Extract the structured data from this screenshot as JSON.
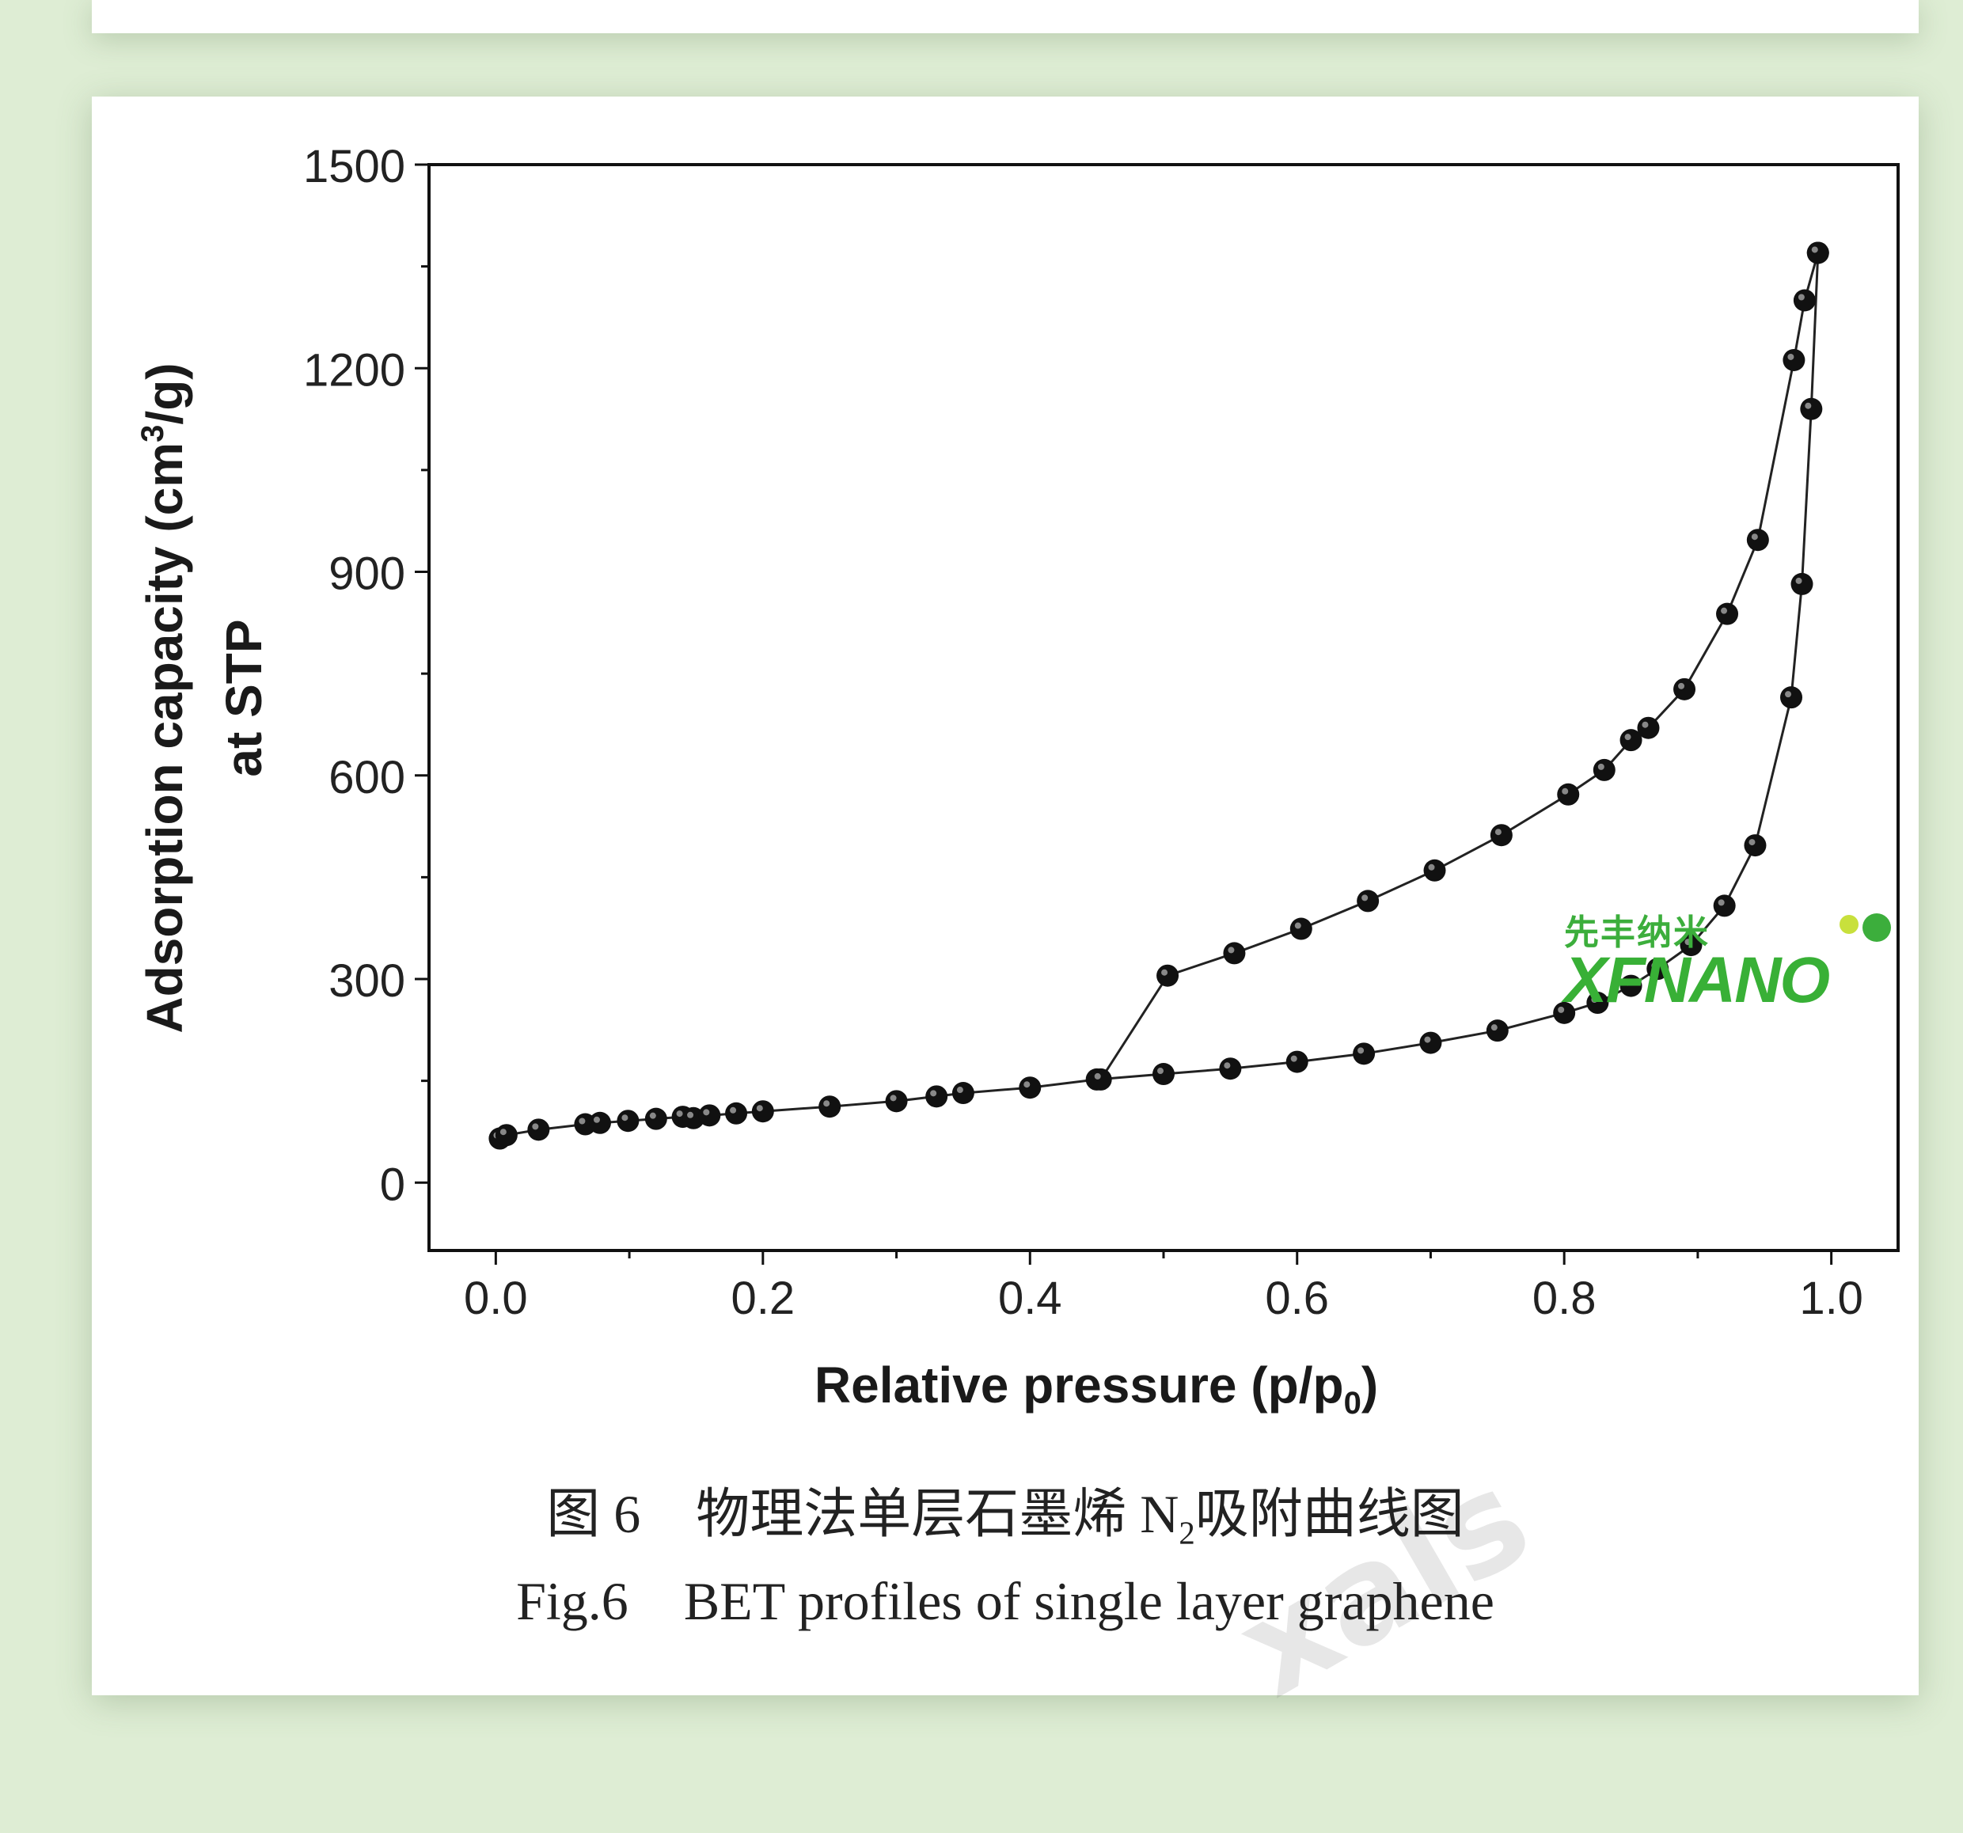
{
  "captions": {
    "cn_num": "图 6",
    "cn_text_pre": "物理法单层石墨烯 N",
    "cn_sub": "2",
    "cn_text_post": "吸附曲线图",
    "en_num": "Fig.6",
    "en_text": "BET profiles of single layer graphene"
  },
  "logo": {
    "cn": "先丰纳米",
    "en": "XFNANO",
    "color": "#38b036"
  },
  "watermark": "xals",
  "chart_data": {
    "type": "scatter",
    "xlabel": "Relative pressure (p/p0)",
    "xlabel_main": "Relative pressure (p/p",
    "xlabel_sub": "0",
    "xlabel_end": ")",
    "ylabel_line1_pre": "Adsorption capacity (cm",
    "ylabel_line1_sup": "3",
    "ylabel_line1_post": "/g)",
    "ylabel_line2": "at STP",
    "xlim": [
      -0.05,
      1.05
    ],
    "ylim": [
      -100,
      1500
    ],
    "xticks": [
      "0.0",
      "0.2",
      "0.4",
      "0.6",
      "0.8",
      "1.0"
    ],
    "xtick_values": [
      0,
      0.2,
      0.4,
      0.6,
      0.8,
      1.0
    ],
    "yticks": [
      "0",
      "300",
      "600",
      "900",
      "1200",
      "1500"
    ],
    "ytick_values": [
      0,
      300,
      600,
      900,
      1200,
      1500
    ],
    "marker": "filled-circle",
    "line_color": "#222222",
    "grid": false,
    "series": [
      {
        "name": "",
        "points": [
          [
            0.003,
            65
          ],
          [
            0.008,
            70
          ],
          [
            0.032,
            78
          ],
          [
            0.067,
            86
          ],
          [
            0.078,
            88
          ],
          [
            0.099,
            91
          ],
          [
            0.12,
            94
          ],
          [
            0.14,
            97
          ],
          [
            0.148,
            95
          ],
          [
            0.16,
            99
          ],
          [
            0.18,
            102
          ],
          [
            0.2,
            105
          ],
          [
            0.25,
            112
          ],
          [
            0.3,
            120
          ],
          [
            0.33,
            127
          ],
          [
            0.35,
            132
          ],
          [
            0.4,
            140
          ],
          [
            0.45,
            152
          ],
          [
            0.5,
            160
          ],
          [
            0.55,
            168
          ],
          [
            0.6,
            178
          ],
          [
            0.65,
            190
          ],
          [
            0.7,
            206
          ],
          [
            0.75,
            224
          ],
          [
            0.8,
            250
          ],
          [
            0.825,
            265
          ],
          [
            0.85,
            290
          ],
          [
            0.87,
            315
          ],
          [
            0.895,
            350
          ],
          [
            0.92,
            408
          ],
          [
            0.943,
            497
          ],
          [
            0.97,
            715
          ],
          [
            0.978,
            882
          ],
          [
            0.985,
            1140
          ],
          [
            0.99,
            1370
          ]
        ]
      },
      {
        "name": "",
        "points": [
          [
            0.99,
            1370
          ],
          [
            0.98,
            1300
          ],
          [
            0.972,
            1212
          ],
          [
            0.945,
            947
          ],
          [
            0.922,
            838
          ],
          [
            0.89,
            727
          ],
          [
            0.863,
            670
          ],
          [
            0.85,
            652
          ],
          [
            0.83,
            608
          ],
          [
            0.803,
            572
          ],
          [
            0.753,
            512
          ],
          [
            0.703,
            460
          ],
          [
            0.653,
            415
          ],
          [
            0.603,
            374
          ],
          [
            0.553,
            338
          ],
          [
            0.503,
            305
          ],
          [
            0.453,
            152
          ]
        ]
      }
    ]
  }
}
